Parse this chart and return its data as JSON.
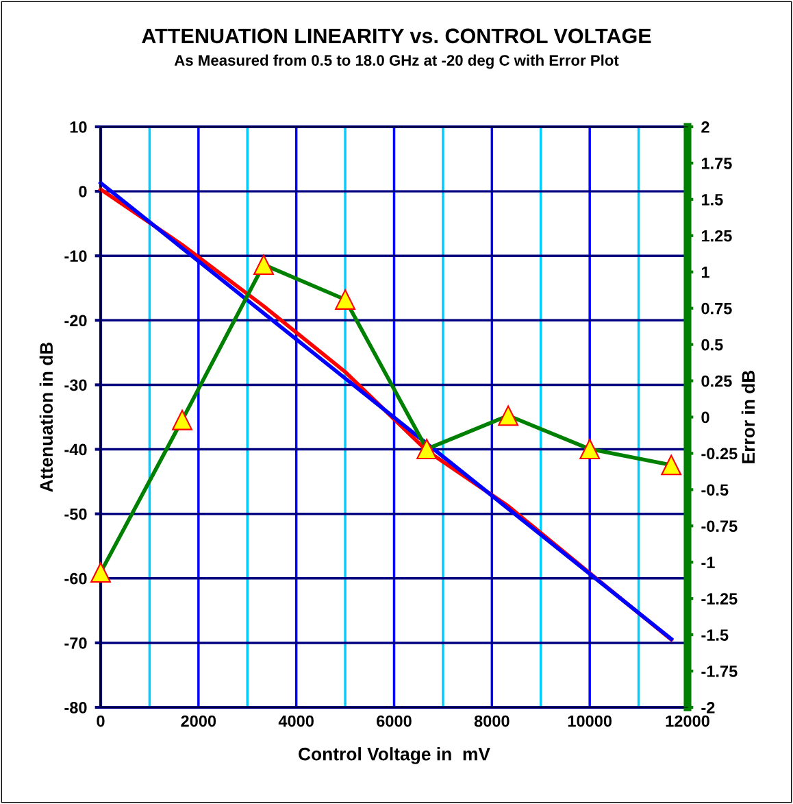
{
  "chart_data": {
    "type": "line",
    "title": "ATTENUATION LINEARITY vs. CONTROL VOLTAGE",
    "subtitle": "As Measured from 0.5 to 18.0 GHz at -20 deg C with Error Plot",
    "xlabel": "Control Voltage in  mV",
    "ylabel": "Attenuation in dB",
    "y2label": "Error in dB",
    "x": [
      0,
      1667,
      3333,
      5000,
      6667,
      8333,
      10000,
      11667
    ],
    "series": [
      {
        "color": "#ff0000",
        "values": [
          0.3,
          -8.3,
          -17.8,
          -28.0,
          -40.2,
          -48.8,
          -59.2,
          -69.5
        ]
      },
      {
        "color": "#0000ff",
        "x": [
          0,
          11667
        ],
        "values": [
          1.3,
          -69.4
        ]
      },
      {
        "color": "#008000",
        "axis": "y2",
        "marker": "triangle",
        "values": [
          -1.07,
          -0.02,
          1.05,
          0.81,
          -0.22,
          0.01,
          -0.22,
          -0.33
        ]
      }
    ],
    "xlim": [
      0,
      12000
    ],
    "xticks": [
      0,
      {
        "value": 1000,
        "label": null
      },
      2000,
      {
        "value": 3000,
        "label": null
      },
      4000,
      {
        "value": 5000,
        "label": null
      },
      6000,
      {
        "value": 7000,
        "label": null
      },
      8000,
      {
        "value": 9000,
        "label": null
      },
      10000,
      {
        "value": 11000,
        "label": null
      },
      12000
    ],
    "ylim": [
      -80,
      10
    ],
    "yticks": [
      -80,
      -70,
      -60,
      -50,
      -40,
      -30,
      -20,
      -10,
      0,
      10
    ],
    "y2lim": [
      -2,
      2
    ],
    "y2ticks": [
      -2,
      -1.75,
      -1.5,
      -1.25,
      -1,
      -0.75,
      -0.5,
      -0.25,
      0,
      0.25,
      0.5,
      0.75,
      1,
      1.25,
      1.5,
      1.75,
      2
    ],
    "grid": true
  }
}
